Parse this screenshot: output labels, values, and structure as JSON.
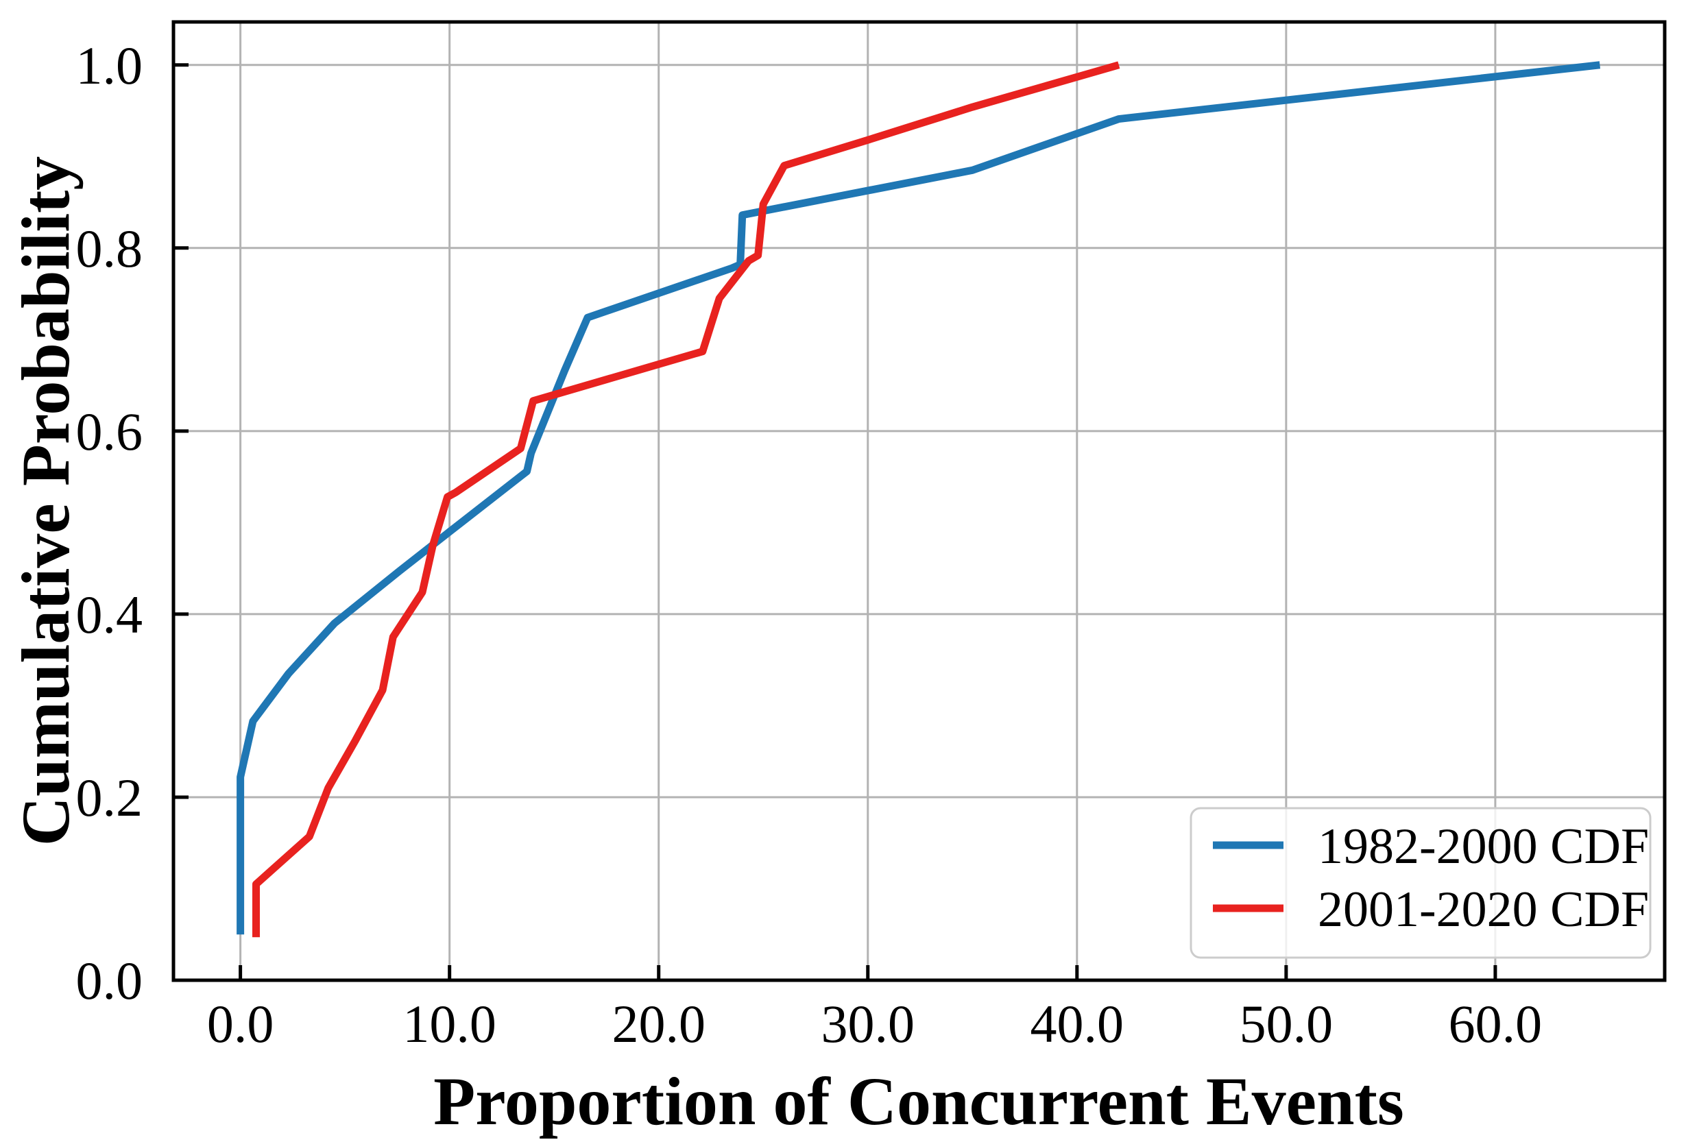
{
  "chart_data": {
    "type": "line",
    "title": "",
    "xlabel": "Proportion of Concurrent Events",
    "ylabel": "Cumulative Probability",
    "xlim": [
      -3.2,
      68.1
    ],
    "ylim": [
      0,
      1.047
    ],
    "grid": true,
    "grid_color": "#b3b3b3",
    "axis_color": "#000000",
    "background_color": "#ffffff",
    "legend_position": "lower right",
    "legend_border_color": "#cccccc",
    "x_ticks": {
      "values": [
        0,
        10,
        20,
        30,
        40,
        50,
        60
      ],
      "labels": [
        "0.0",
        "10.0",
        "20.0",
        "30.0",
        "40.0",
        "50.0",
        "60.0"
      ]
    },
    "y_ticks": {
      "values": [
        0,
        0.2,
        0.4,
        0.6,
        0.8,
        1.0
      ],
      "labels": [
        "0.0",
        "0.2",
        "0.4",
        "0.6",
        "0.8",
        "1.0"
      ]
    },
    "series": [
      {
        "name": "1982-2000 CDF",
        "color": "#1f77b4",
        "points": [
          [
            0,
            0.05
          ],
          [
            0,
            0.222
          ],
          [
            0.6,
            0.283
          ],
          [
            2.3,
            0.335
          ],
          [
            4.5,
            0.39
          ],
          [
            7.6,
            0.447
          ],
          [
            10,
            0.49
          ],
          [
            13.7,
            0.556
          ],
          [
            13.9,
            0.576
          ],
          [
            15.5,
            0.666
          ],
          [
            16.6,
            0.724
          ],
          [
            23.5,
            0.778
          ],
          [
            23.9,
            0.782
          ],
          [
            24.0,
            0.836
          ],
          [
            35,
            0.885
          ],
          [
            42,
            0.941
          ],
          [
            65,
            1.0
          ]
        ]
      },
      {
        "name": "2001-2020 CDF",
        "color": "#e8221f",
        "points": [
          [
            0.75,
            0.047
          ],
          [
            0.75,
            0.105
          ],
          [
            3.3,
            0.157
          ],
          [
            4.2,
            0.21
          ],
          [
            5.5,
            0.262
          ],
          [
            6.8,
            0.317
          ],
          [
            7.3,
            0.375
          ],
          [
            8.7,
            0.424
          ],
          [
            9.2,
            0.475
          ],
          [
            9.9,
            0.528
          ],
          [
            10.3,
            0.533
          ],
          [
            13.4,
            0.581
          ],
          [
            14.0,
            0.633
          ],
          [
            22.1,
            0.687
          ],
          [
            22.9,
            0.745
          ],
          [
            24.3,
            0.786
          ],
          [
            24.75,
            0.792
          ],
          [
            25.0,
            0.848
          ],
          [
            26.0,
            0.89
          ],
          [
            30,
            0.918
          ],
          [
            35,
            0.954
          ],
          [
            42,
            1.0
          ]
        ]
      }
    ]
  }
}
